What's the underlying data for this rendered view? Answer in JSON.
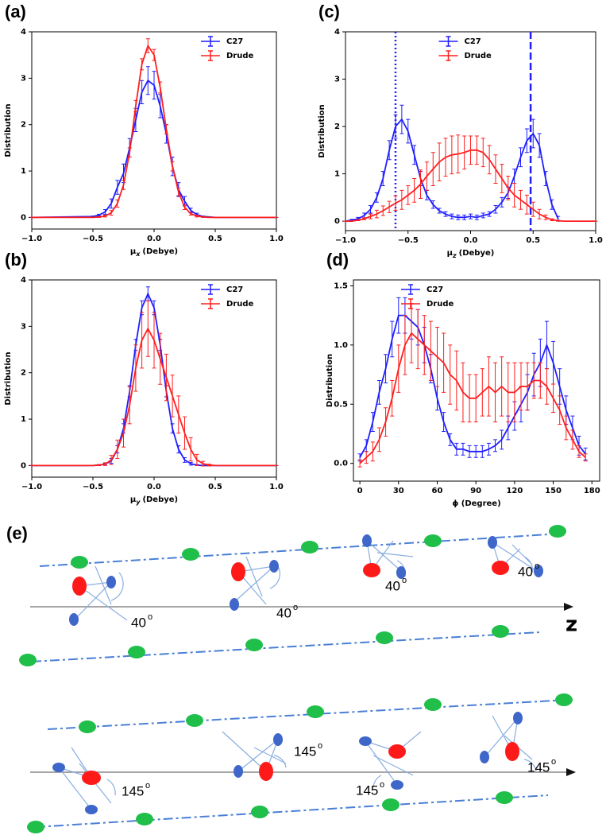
{
  "chart_data": [
    {
      "type": "line",
      "panel": "(a)",
      "ylabel": "Distribution",
      "xlabel": {
        "symbol": "μ",
        "subscript": "x",
        "text": "(Debye)"
      },
      "xlim": [
        -1,
        1
      ],
      "ylim": [
        -0.25,
        4
      ],
      "xticks": [
        {
          "value": -1,
          "label": "−1.0"
        },
        {
          "value": -0.5,
          "label": "−0.5"
        },
        {
          "value": 0,
          "label": "0.0"
        },
        0.5,
        {
          "value": 1,
          "label": "1.0"
        }
      ],
      "yticks": [
        0,
        1,
        2,
        3,
        4
      ],
      "legend": "upper right",
      "x": [
        -1,
        -0.5,
        -0.45,
        -0.4,
        -0.35,
        -0.3,
        -0.25,
        -0.2,
        -0.15,
        -0.1,
        -0.05,
        0,
        0.05,
        0.1,
        0.15,
        0.2,
        0.25,
        0.3,
        0.35,
        0.4,
        0.45,
        0.5,
        1
      ],
      "series": [
        {
          "name": "C27",
          "color": "#1f1fff",
          "values": [
            0,
            0.02,
            0.05,
            0.12,
            0.3,
            0.65,
            0.95,
            1.5,
            2.1,
            2.7,
            2.95,
            2.85,
            2.4,
            1.8,
            1.1,
            0.6,
            0.35,
            0.15,
            0.06,
            0.02,
            0.01,
            0,
            0
          ],
          "errors": [
            0,
            0.01,
            0.02,
            0.05,
            0.1,
            0.15,
            0.2,
            0.2,
            0.25,
            0.25,
            0.3,
            0.3,
            0.25,
            0.2,
            0.2,
            0.15,
            0.1,
            0.05,
            0.03,
            0.01,
            0,
            0,
            0
          ]
        },
        {
          "name": "Drude",
          "color": "#ff1f1f",
          "values": [
            0,
            0,
            0.01,
            0.03,
            0.1,
            0.3,
            0.7,
            1.4,
            2.4,
            3.3,
            3.7,
            3.5,
            2.8,
            1.9,
            1.1,
            0.55,
            0.22,
            0.08,
            0.03,
            0.01,
            0,
            0,
            0
          ],
          "errors": [
            0,
            0,
            0.01,
            0.02,
            0.05,
            0.08,
            0.1,
            0.1,
            0.12,
            0.12,
            0.15,
            0.12,
            0.12,
            0.1,
            0.1,
            0.08,
            0.05,
            0.03,
            0.02,
            0.01,
            0,
            0,
            0
          ]
        }
      ]
    },
    {
      "type": "line",
      "panel": "(b)",
      "ylabel": "Distribution",
      "xlabel": {
        "symbol": "μ",
        "subscript": "y",
        "text": "(Debye)"
      },
      "xlim": [
        -1,
        1
      ],
      "ylim": [
        -0.25,
        4
      ],
      "xticks": [
        {
          "value": -1,
          "label": "−1.0"
        },
        {
          "value": -0.5,
          "label": "−0.5"
        },
        {
          "value": 0,
          "label": "0.0"
        },
        0.5,
        {
          "value": 1,
          "label": "1.0"
        }
      ],
      "yticks": [
        0,
        1,
        2,
        3,
        4
      ],
      "legend": "upper right",
      "x": [
        -1,
        -0.5,
        -0.45,
        -0.4,
        -0.35,
        -0.3,
        -0.25,
        -0.2,
        -0.15,
        -0.1,
        -0.05,
        0,
        0.05,
        0.1,
        0.15,
        0.2,
        0.25,
        0.3,
        0.35,
        0.4,
        0.45,
        0.5,
        1
      ],
      "series": [
        {
          "name": "C27",
          "color": "#1f1fff",
          "values": [
            0,
            0,
            0.01,
            0.03,
            0.1,
            0.35,
            0.8,
            1.6,
            2.6,
            3.4,
            3.7,
            3.4,
            2.6,
            1.6,
            0.8,
            0.35,
            0.12,
            0.04,
            0.01,
            0,
            0,
            0,
            0
          ],
          "errors": [
            0,
            0,
            0.01,
            0.02,
            0.05,
            0.08,
            0.1,
            0.12,
            0.12,
            0.15,
            0.15,
            0.15,
            0.12,
            0.12,
            0.1,
            0.08,
            0.05,
            0.03,
            0.01,
            0,
            0,
            0,
            0
          ]
        },
        {
          "name": "Drude",
          "color": "#ff1f1f",
          "values": [
            0,
            0,
            0.01,
            0.03,
            0.12,
            0.35,
            0.7,
            1.3,
            2.1,
            2.7,
            2.95,
            2.7,
            2.3,
            1.9,
            1.5,
            1.1,
            0.7,
            0.35,
            0.12,
            0.04,
            0.01,
            0,
            0
          ],
          "errors": [
            0,
            0,
            0.01,
            0.03,
            0.1,
            0.2,
            0.3,
            0.4,
            0.5,
            0.6,
            0.6,
            0.6,
            0.55,
            0.5,
            0.45,
            0.4,
            0.35,
            0.25,
            0.12,
            0.05,
            0.02,
            0,
            0
          ]
        }
      ]
    },
    {
      "type": "line",
      "panel": "(c)",
      "ylabel": "Distribution",
      "xlabel": {
        "symbol": "μ",
        "subscript": "z",
        "text": "(Debye)"
      },
      "xlim": [
        -1,
        1
      ],
      "ylim": [
        -0.2,
        4
      ],
      "xticks": [
        {
          "value": -1,
          "label": "−1.0"
        },
        {
          "value": -0.5,
          "label": "−0.5"
        },
        {
          "value": 0,
          "label": "0.0"
        },
        0.5,
        {
          "value": 1,
          "label": "1.0"
        }
      ],
      "yticks": [
        0,
        1,
        2,
        3,
        4
      ],
      "legend": "upper center",
      "vlines": [
        {
          "value": -0.6,
          "style": "dotted",
          "color": "#1f1fff"
        },
        {
          "value": 0.48,
          "style": "dashed",
          "color": "#1f1fff"
        }
      ],
      "x": [
        -1,
        -0.95,
        -0.9,
        -0.85,
        -0.8,
        -0.75,
        -0.7,
        -0.65,
        -0.6,
        -0.55,
        -0.5,
        -0.45,
        -0.4,
        -0.35,
        -0.3,
        -0.25,
        -0.2,
        -0.15,
        -0.1,
        -0.05,
        0,
        0.05,
        0.1,
        0.15,
        0.2,
        0.25,
        0.3,
        0.35,
        0.4,
        0.45,
        0.5,
        0.55,
        0.6,
        0.65,
        0.7,
        0.75,
        0.8,
        0.85,
        0.9,
        0.95,
        1
      ],
      "series": [
        {
          "name": "C27",
          "color": "#1f1fff",
          "values": [
            0,
            0.02,
            0.05,
            0.12,
            0.25,
            0.5,
            0.9,
            1.5,
            2.0,
            2.15,
            1.9,
            1.4,
            0.9,
            0.55,
            0.35,
            0.22,
            0.15,
            0.1,
            0.08,
            0.08,
            0.1,
            0.08,
            0.12,
            0.15,
            0.25,
            0.4,
            0.6,
            0.95,
            1.35,
            1.7,
            1.85,
            1.6,
            0.9,
            0.35,
            0.05,
            null,
            null,
            null,
            null,
            null,
            null
          ],
          "errors": [
            0,
            0.02,
            0.03,
            0.05,
            0.08,
            0.1,
            0.15,
            0.2,
            0.25,
            0.3,
            0.25,
            0.2,
            0.15,
            0.1,
            0.08,
            0.05,
            0.05,
            0.05,
            0.05,
            0.05,
            0.05,
            0.05,
            0.05,
            0.05,
            0.08,
            0.1,
            0.12,
            0.15,
            0.2,
            0.25,
            0.3,
            0.25,
            0.15,
            0.1,
            0.05,
            null,
            null,
            null,
            null,
            null,
            null
          ]
        },
        {
          "name": "Drude",
          "color": "#ff1f1f",
          "values": [
            0,
            0,
            0.02,
            0.05,
            0.1,
            0.15,
            0.22,
            0.3,
            0.38,
            0.45,
            0.55,
            0.65,
            0.78,
            0.95,
            1.1,
            1.25,
            1.35,
            1.4,
            1.42,
            1.45,
            1.5,
            1.5,
            1.45,
            1.3,
            1.1,
            0.9,
            0.7,
            0.55,
            0.45,
            0.35,
            0.25,
            0.15,
            0.08,
            0.03,
            0.01,
            0,
            0,
            0,
            0,
            0,
            0
          ],
          "errors": [
            0,
            0,
            0.01,
            0.02,
            0.05,
            0.08,
            0.1,
            0.12,
            0.15,
            0.2,
            0.2,
            0.25,
            0.3,
            0.3,
            0.35,
            0.4,
            0.4,
            0.4,
            0.4,
            0.35,
            0.3,
            0.3,
            0.3,
            0.3,
            0.3,
            0.3,
            0.25,
            0.25,
            0.2,
            0.2,
            0.15,
            0.1,
            0.05,
            0.02,
            0.01,
            0,
            0,
            0,
            0,
            0,
            0
          ]
        }
      ]
    },
    {
      "type": "line",
      "panel": "(d)",
      "ylabel": "Distribution",
      "xlabel": "ϕ (Degree)",
      "xlim": [
        -5,
        186
      ],
      "ylim": [
        -0.15,
        1.55
      ],
      "xticks": [
        0,
        30,
        60,
        90,
        120,
        150,
        180
      ],
      "yticks": [
        {
          "value": 0,
          "label": "0.0"
        },
        0.5,
        {
          "value": 1,
          "label": "1.0"
        },
        1.5
      ],
      "legend": "upper left",
      "x": [
        0,
        5,
        10,
        15,
        20,
        25,
        30,
        35,
        40,
        45,
        50,
        55,
        60,
        65,
        70,
        75,
        80,
        85,
        90,
        95,
        100,
        105,
        110,
        115,
        120,
        125,
        130,
        135,
        140,
        145,
        150,
        155,
        160,
        165,
        170,
        175
      ],
      "series": [
        {
          "name": "C27",
          "color": "#1f1fff",
          "values": [
            0.05,
            0.15,
            0.35,
            0.6,
            0.8,
            1.05,
            1.25,
            1.25,
            1.2,
            1.15,
            1.0,
            0.8,
            0.55,
            0.35,
            0.2,
            0.12,
            0.12,
            0.1,
            0.1,
            0.1,
            0.12,
            0.15,
            0.2,
            0.3,
            0.4,
            0.5,
            0.6,
            0.75,
            0.85,
            1.0,
            0.85,
            0.65,
            0.45,
            0.3,
            0.15,
            0.08
          ],
          "errors": [
            0.03,
            0.05,
            0.08,
            0.1,
            0.12,
            0.15,
            0.15,
            0.15,
            0.15,
            0.15,
            0.15,
            0.12,
            0.1,
            0.08,
            0.05,
            0.05,
            0.05,
            0.05,
            0.05,
            0.05,
            0.05,
            0.05,
            0.08,
            0.1,
            0.12,
            0.15,
            0.15,
            0.18,
            0.2,
            0.2,
            0.18,
            0.15,
            0.12,
            0.1,
            0.08,
            0.05
          ]
        },
        {
          "name": "Drude",
          "color": "#ff1f1f",
          "values": [
            0,
            0.05,
            0.1,
            0.2,
            0.35,
            0.55,
            0.8,
            1.0,
            1.1,
            1.05,
            1.0,
            0.95,
            0.9,
            0.85,
            0.75,
            0.7,
            0.6,
            0.55,
            0.55,
            0.6,
            0.65,
            0.6,
            0.65,
            0.6,
            0.6,
            0.65,
            0.65,
            0.7,
            0.7,
            0.65,
            0.55,
            0.45,
            0.3,
            0.2,
            0.1,
            0.05
          ],
          "errors": [
            0.03,
            0.05,
            0.08,
            0.1,
            0.12,
            0.15,
            0.2,
            0.25,
            0.25,
            0.25,
            0.25,
            0.25,
            0.25,
            0.25,
            0.25,
            0.25,
            0.25,
            0.2,
            0.2,
            0.2,
            0.25,
            0.25,
            0.25,
            0.25,
            0.25,
            0.2,
            0.2,
            0.15,
            0.15,
            0.15,
            0.12,
            0.12,
            0.1,
            0.08,
            0.05,
            0.03
          ]
        }
      ]
    }
  ],
  "diagram": {
    "panel": "(e)",
    "axis_label": "z",
    "degree_mark": "o",
    "top_angles": [
      "40",
      "40",
      "40",
      "40"
    ],
    "bottom_angles": [
      "145",
      "145",
      "145",
      "145"
    ]
  }
}
